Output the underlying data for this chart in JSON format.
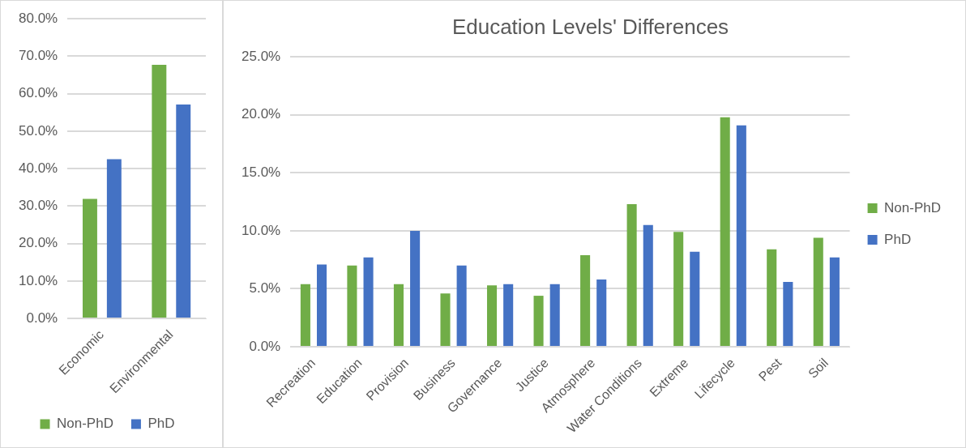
{
  "chart_data": [
    {
      "type": "bar",
      "categories": [
        "Economic",
        "Environmental"
      ],
      "series": [
        {
          "name": "Non-PhD",
          "color": "#70ad47",
          "values": [
            31.9,
            67.7
          ]
        },
        {
          "name": "PhD",
          "color": "#4472c4",
          "values": [
            42.5,
            57.1
          ]
        }
      ],
      "ylim": [
        0,
        80
      ],
      "yticks": [
        {
          "value": 0,
          "label": "0.0%"
        },
        {
          "value": 10,
          "label": "10.0%"
        },
        {
          "value": 20,
          "label": "20.0%"
        },
        {
          "value": 30,
          "label": "30.0%"
        },
        {
          "value": 40,
          "label": "40.0%"
        },
        {
          "value": 50,
          "label": "50.0%"
        },
        {
          "value": 60,
          "label": "60.0%"
        },
        {
          "value": 70,
          "label": "70.0%"
        },
        {
          "value": 80,
          "label": "80.0%"
        }
      ],
      "grid": "y",
      "legend": "bottom"
    },
    {
      "type": "bar",
      "title": "Education Levels' Differences",
      "categories": [
        "Recreation",
        "Education",
        "Provision",
        "Business",
        "Governance",
        "Justice",
        "Atmosphere",
        "Water Conditions",
        "Extreme",
        "Lifecycle",
        "Pest",
        "Soil"
      ],
      "series": [
        {
          "name": "Non-PhD",
          "color": "#70ad47",
          "values": [
            5.4,
            7.0,
            5.4,
            4.6,
            5.3,
            4.4,
            7.9,
            12.3,
            9.9,
            19.8,
            8.4,
            9.4
          ]
        },
        {
          "name": "PhD",
          "color": "#4472c4",
          "values": [
            7.1,
            7.7,
            10.0,
            7.0,
            5.4,
            5.4,
            5.8,
            10.5,
            8.2,
            19.1,
            5.6,
            7.7
          ]
        }
      ],
      "ylim": [
        0,
        25
      ],
      "yticks": [
        {
          "value": 0,
          "label": "0.0%"
        },
        {
          "value": 5,
          "label": "5.0%"
        },
        {
          "value": 10,
          "label": "10.0%"
        },
        {
          "value": 15,
          "label": "15.0%"
        },
        {
          "value": 20,
          "label": "20.0%"
        },
        {
          "value": 25,
          "label": "25.0%"
        }
      ],
      "grid": "y",
      "legend": "right"
    }
  ]
}
